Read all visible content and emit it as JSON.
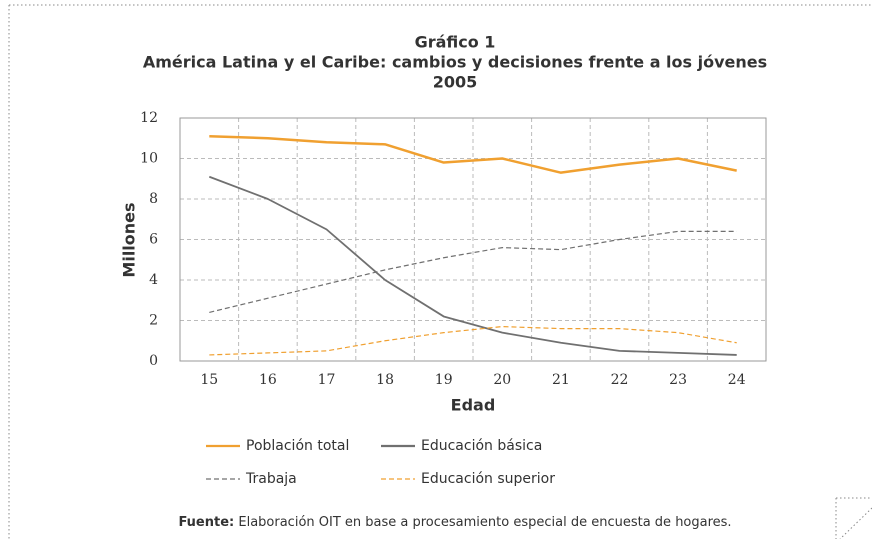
{
  "chart_data": {
    "type": "line",
    "title": [
      "Gráfico 1",
      "América Latina y el Caribe: cambios y decisiones frente a los jóvenes",
      "2005"
    ],
    "xlabel": "Edad",
    "ylabel": "Millones",
    "categories": [
      "15",
      "16",
      "17",
      "18",
      "19",
      "20",
      "21",
      "22",
      "23",
      "24"
    ],
    "series": [
      {
        "name": "Población total",
        "color": "#f0a030",
        "dash": false,
        "values": [
          11.1,
          11.0,
          10.8,
          10.7,
          9.8,
          10.0,
          9.3,
          9.7,
          10.0,
          9.4
        ]
      },
      {
        "name": "Educación básica",
        "color": "#707070",
        "dash": false,
        "values": [
          9.1,
          8.0,
          6.5,
          4.0,
          2.2,
          1.4,
          0.9,
          0.5,
          0.4,
          0.3
        ]
      },
      {
        "name": "Trabaja",
        "color": "#707070",
        "dash": true,
        "values": [
          2.4,
          3.1,
          3.8,
          4.5,
          5.1,
          5.6,
          5.5,
          6.0,
          6.4,
          6.4
        ]
      },
      {
        "name": "Educación superior",
        "color": "#f0a030",
        "dash": true,
        "values": [
          0.3,
          0.4,
          0.5,
          1.0,
          1.4,
          1.7,
          1.6,
          1.6,
          1.4,
          0.9
        ]
      }
    ],
    "ylim": [
      0,
      12
    ],
    "yticks": [
      0,
      2,
      4,
      6,
      8,
      10,
      12
    ],
    "grid": true
  },
  "footer": {
    "label": "Fuente:",
    "text": "Elaboración OIT en base a procesamiento especial de encuesta de hogares."
  }
}
